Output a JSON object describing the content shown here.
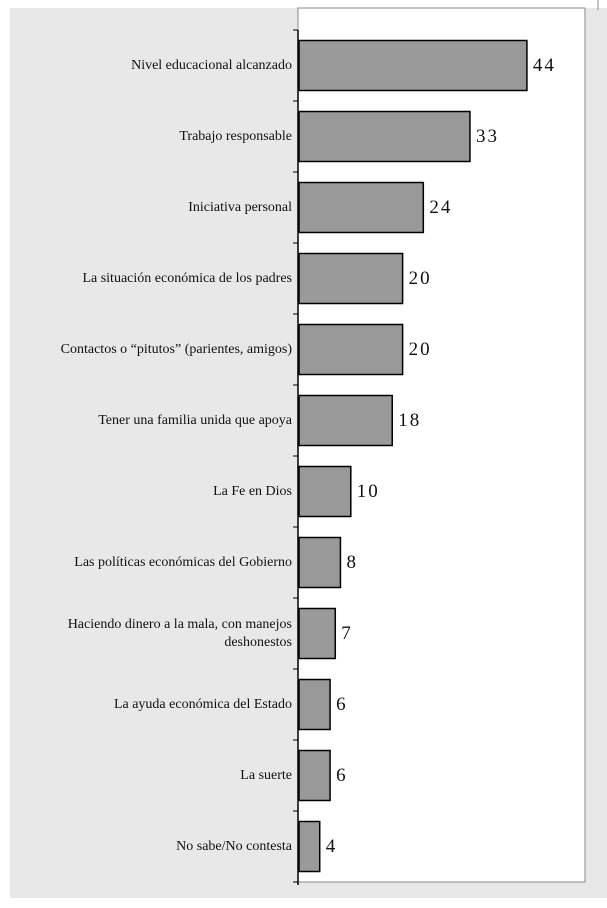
{
  "chart_data": {
    "type": "bar",
    "orientation": "horizontal",
    "categories": [
      "Nivel educacional alcanzado",
      "Trabajo responsable",
      "Iniciativa personal",
      "La situación económica de los padres",
      "Contactos o “pitutos” (parientes, amigos)",
      "Tener una familia unida que apoya",
      "La Fe en Dios",
      "Las políticas económicas del Gobierno",
      "Haciendo dinero a la mala, con manejos deshonestos",
      "La ayuda económica del Estado",
      "La suerte",
      "No sabe/No contesta"
    ],
    "values": [
      44,
      33,
      24,
      20,
      20,
      18,
      10,
      8,
      7,
      6,
      6,
      4
    ],
    "color": "#999999"
  }
}
